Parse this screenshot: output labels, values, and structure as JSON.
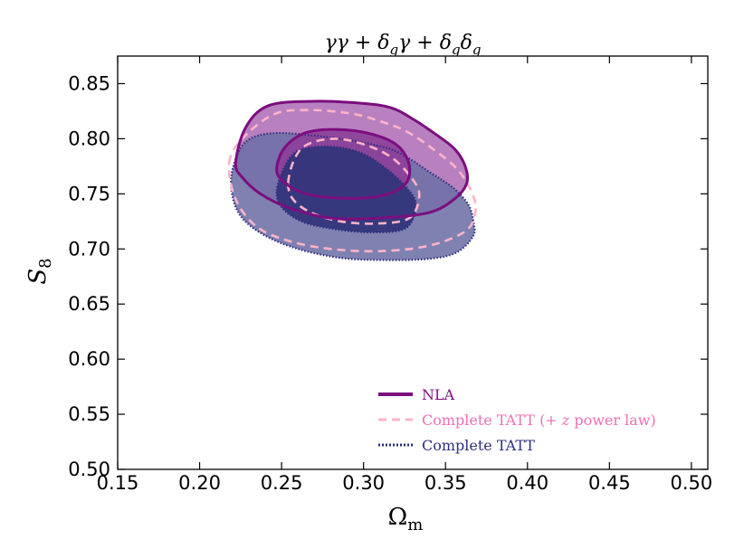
{
  "chart_data": {
    "type": "contour",
    "title": "γγ + δ_gγ + δ_gδ_g",
    "title_parts": {
      "a": "γγ + δ",
      "g1": "g",
      "b": "γ + δ",
      "g2": "g",
      "c": "δ",
      "g3": "g"
    },
    "xlabel": {
      "main": "Ω",
      "sub": "m"
    },
    "ylabel": {
      "main": "S",
      "sub": "8"
    },
    "xlim": [
      0.15,
      0.51
    ],
    "ylim": [
      0.5,
      0.875
    ],
    "xticks": [
      0.15,
      0.2,
      0.25,
      0.3,
      0.35,
      0.4,
      0.45,
      0.5
    ],
    "yticks": [
      0.5,
      0.55,
      0.6,
      0.65,
      0.7,
      0.75,
      0.8,
      0.85
    ],
    "xtick_labels": [
      "0.15",
      "0.20",
      "0.25",
      "0.30",
      "0.35",
      "0.40",
      "0.45",
      "0.50"
    ],
    "ytick_labels": [
      "0.50",
      "0.55",
      "0.60",
      "0.65",
      "0.70",
      "0.75",
      "0.80",
      "0.85"
    ],
    "legend_position": "lower-right",
    "series": [
      {
        "name": "Complete TATT",
        "color": "#2e2f7f",
        "linestyle": "dotted",
        "fill_outer": "#6d6fa6",
        "fill_inner": "#33357a",
        "contour_95": [
          [
            0.22,
            0.772
          ],
          [
            0.228,
            0.797
          ],
          [
            0.245,
            0.805
          ],
          [
            0.275,
            0.802
          ],
          [
            0.305,
            0.795
          ],
          [
            0.322,
            0.787
          ],
          [
            0.34,
            0.77
          ],
          [
            0.355,
            0.755
          ],
          [
            0.364,
            0.74
          ],
          [
            0.367,
            0.725
          ],
          [
            0.367,
            0.712
          ],
          [
            0.357,
            0.697
          ],
          [
            0.34,
            0.691
          ],
          [
            0.31,
            0.69
          ],
          [
            0.285,
            0.692
          ],
          [
            0.26,
            0.7
          ],
          [
            0.24,
            0.712
          ],
          [
            0.226,
            0.728
          ],
          [
            0.22,
            0.748
          ]
        ],
        "contour_68": [
          [
            0.247,
            0.753
          ],
          [
            0.252,
            0.775
          ],
          [
            0.26,
            0.789
          ],
          [
            0.278,
            0.793
          ],
          [
            0.297,
            0.788
          ],
          [
            0.312,
            0.775
          ],
          [
            0.326,
            0.756
          ],
          [
            0.332,
            0.74
          ],
          [
            0.326,
            0.719
          ],
          [
            0.306,
            0.715
          ],
          [
            0.282,
            0.718
          ],
          [
            0.262,
            0.725
          ],
          [
            0.25,
            0.738
          ]
        ]
      },
      {
        "name": "Complete TATT (+ z power law)",
        "legend_parts": {
          "a": "Complete TATT (+ ",
          "z": "z",
          "b": " power law)"
        },
        "color": "#ffb3c8",
        "linestyle": "dashed",
        "contour_95": [
          [
            0.218,
            0.778
          ],
          [
            0.226,
            0.8
          ],
          [
            0.245,
            0.822
          ],
          [
            0.265,
            0.826
          ],
          [
            0.292,
            0.823
          ],
          [
            0.312,
            0.815
          ],
          [
            0.327,
            0.806
          ],
          [
            0.343,
            0.79
          ],
          [
            0.358,
            0.771
          ],
          [
            0.367,
            0.748
          ],
          [
            0.368,
            0.732
          ],
          [
            0.362,
            0.716
          ],
          [
            0.34,
            0.703
          ],
          [
            0.31,
            0.698
          ],
          [
            0.28,
            0.7
          ],
          [
            0.255,
            0.707
          ],
          [
            0.235,
            0.72
          ],
          [
            0.222,
            0.745
          ]
        ],
        "contour_68": [
          [
            0.254,
            0.76
          ],
          [
            0.258,
            0.782
          ],
          [
            0.266,
            0.795
          ],
          [
            0.283,
            0.8
          ],
          [
            0.302,
            0.794
          ],
          [
            0.318,
            0.782
          ],
          [
            0.33,
            0.763
          ],
          [
            0.334,
            0.748
          ],
          [
            0.328,
            0.728
          ],
          [
            0.308,
            0.723
          ],
          [
            0.286,
            0.725
          ],
          [
            0.268,
            0.733
          ],
          [
            0.257,
            0.745
          ]
        ]
      },
      {
        "name": "NLA",
        "color": "#7b0e7f",
        "linestyle": "solid",
        "fill_outer": "#b072b8",
        "fill_inner": "#8c3f97",
        "contour_95": [
          [
            0.222,
            0.778
          ],
          [
            0.228,
            0.81
          ],
          [
            0.242,
            0.83
          ],
          [
            0.27,
            0.834
          ],
          [
            0.3,
            0.832
          ],
          [
            0.317,
            0.828
          ],
          [
            0.33,
            0.818
          ],
          [
            0.345,
            0.803
          ],
          [
            0.356,
            0.79
          ],
          [
            0.362,
            0.775
          ],
          [
            0.363,
            0.76
          ],
          [
            0.356,
            0.746
          ],
          [
            0.34,
            0.733
          ],
          [
            0.31,
            0.728
          ],
          [
            0.28,
            0.728
          ],
          [
            0.255,
            0.737
          ],
          [
            0.237,
            0.75
          ],
          [
            0.226,
            0.765
          ]
        ],
        "contour_68": [
          [
            0.247,
            0.772
          ],
          [
            0.252,
            0.792
          ],
          [
            0.266,
            0.806
          ],
          [
            0.29,
            0.808
          ],
          [
            0.31,
            0.802
          ],
          [
            0.322,
            0.792
          ],
          [
            0.328,
            0.775
          ],
          [
            0.325,
            0.758
          ],
          [
            0.31,
            0.748
          ],
          [
            0.288,
            0.746
          ],
          [
            0.265,
            0.75
          ],
          [
            0.252,
            0.76
          ]
        ]
      }
    ]
  }
}
